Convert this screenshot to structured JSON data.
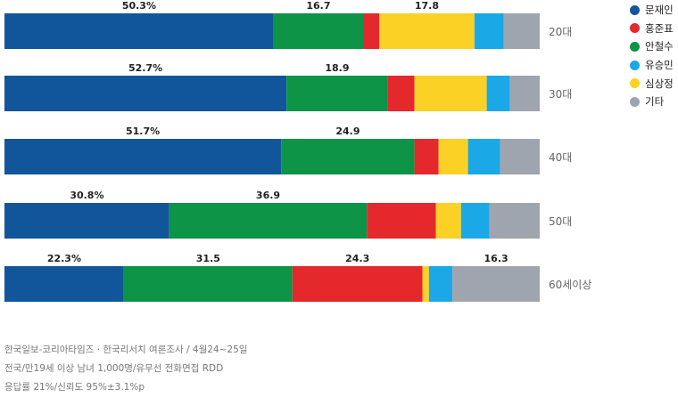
{
  "chart_data": {
    "type": "bar",
    "orientation": "horizontal",
    "stacked": true,
    "categories": [
      "20대",
      "30대",
      "40대",
      "50대",
      "60세이상"
    ],
    "series": [
      {
        "name": "문재인",
        "color": "#11569b",
        "values": [
          50.3,
          52.7,
          51.7,
          30.8,
          22.3
        ]
      },
      {
        "name": "안철수",
        "color": "#0d9447",
        "values": [
          16.7,
          18.9,
          24.9,
          36.9,
          31.5
        ]
      },
      {
        "name": "홍준표",
        "color": "#e4282c",
        "values": [
          3.0,
          5.0,
          4.5,
          12.9,
          24.3
        ]
      },
      {
        "name": "심상정",
        "color": "#fcd125",
        "values": [
          17.8,
          13.5,
          5.5,
          4.7,
          1.2
        ]
      },
      {
        "name": "유승민",
        "color": "#1ba8e6",
        "values": [
          5.5,
          4.3,
          6.0,
          5.3,
          4.4
        ]
      },
      {
        "name": "기타",
        "color": "#9fa5ae",
        "values": [
          6.7,
          5.6,
          7.4,
          9.4,
          16.3
        ]
      }
    ],
    "data_labels": [
      [
        {
          "series": 0,
          "text": "50.3%"
        },
        {
          "series": 1,
          "text": "16.7"
        },
        {
          "series": 3,
          "text": "17.8"
        }
      ],
      [
        {
          "series": 0,
          "text": "52.7%"
        },
        {
          "series": 1,
          "text": "18.9"
        }
      ],
      [
        {
          "series": 0,
          "text": "51.7%"
        },
        {
          "series": 1,
          "text": "24.9"
        }
      ],
      [
        {
          "series": 0,
          "text": "30.8%"
        },
        {
          "series": 1,
          "text": "36.9"
        }
      ],
      [
        {
          "series": 0,
          "text": "22.3%"
        },
        {
          "series": 1,
          "text": "31.5"
        },
        {
          "series": 2,
          "text": "24.3"
        },
        {
          "series": 5,
          "text": "16.3"
        }
      ]
    ],
    "xlim": [
      0,
      100
    ],
    "legend_position": "top-right",
    "grid": false
  },
  "legend": [
    {
      "label": "문재인",
      "color": "#11569b"
    },
    {
      "label": "홍준표",
      "color": "#e4282c"
    },
    {
      "label": "안철수",
      "color": "#0d9447"
    },
    {
      "label": "유승민",
      "color": "#1ba8e6"
    },
    {
      "label": "심상정",
      "color": "#fcd125"
    },
    {
      "label": "기타",
      "color": "#9fa5ae"
    }
  ],
  "footnote": {
    "line1": "한국일보-코리아타임즈 · 한국리서치 여론조사 / 4월24~25일",
    "line2": "전국/만19세 이상 남녀 1,000명/유무선 전화면접 RDD",
    "line3": "응답률 21%/신뢰도 95%±3.1%p"
  }
}
